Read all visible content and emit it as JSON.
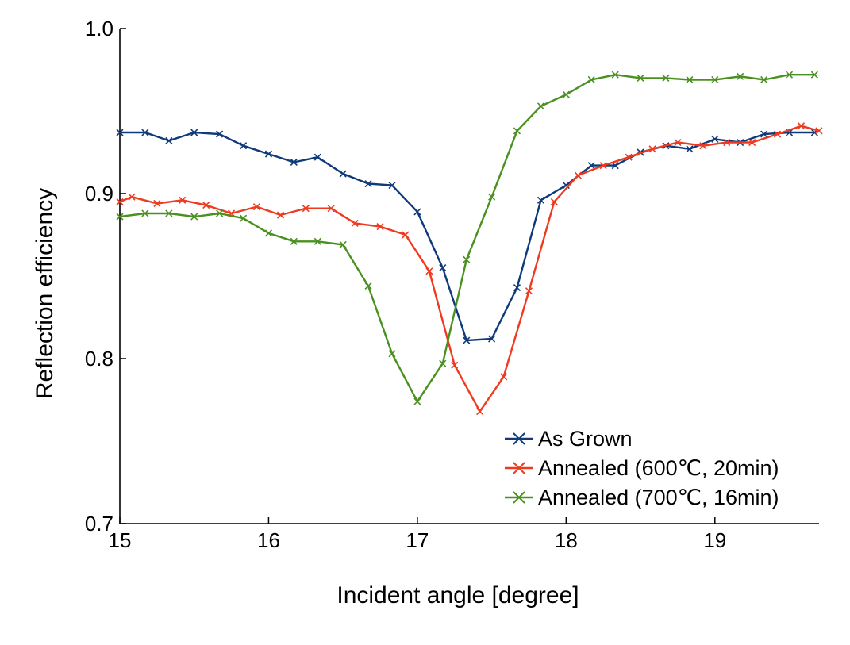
{
  "chart_data": {
    "type": "line",
    "title": "",
    "xlabel": "Incident angle [degree]",
    "ylabel": "Reflection efficiency",
    "xlim": [
      15,
      19.7
    ],
    "ylim": [
      0.7,
      1.0
    ],
    "xticks": [
      15,
      16,
      17,
      18,
      19
    ],
    "yticks": [
      0.7,
      0.8,
      0.9,
      1.0
    ],
    "xtick_labels": [
      "15",
      "16",
      "17",
      "18",
      "19"
    ],
    "ytick_labels": [
      "0.7",
      "0.8",
      "0.9",
      "1.0"
    ],
    "grid": false,
    "legend_position": "bottom-right",
    "marker": "x",
    "series": [
      {
        "name": "As Grown",
        "color": "#0f3a7a",
        "x": [
          15.0,
          15.17,
          15.33,
          15.5,
          15.67,
          15.83,
          16.0,
          16.17,
          16.33,
          16.5,
          16.67,
          16.83,
          17.0,
          17.17,
          17.33,
          17.5,
          17.67,
          17.83,
          18.0,
          18.17,
          18.33,
          18.5,
          18.67,
          18.83,
          19.0,
          19.17,
          19.33,
          19.5,
          19.67
        ],
        "y": [
          0.937,
          0.937,
          0.932,
          0.937,
          0.936,
          0.929,
          0.924,
          0.919,
          0.922,
          0.912,
          0.906,
          0.905,
          0.889,
          0.855,
          0.811,
          0.812,
          0.843,
          0.896,
          0.905,
          0.917,
          0.917,
          0.925,
          0.929,
          0.927,
          0.933,
          0.931,
          0.936,
          0.937,
          0.937
        ]
      },
      {
        "name": "Annealed (600℃, 20min)",
        "color": "#ee3a1f",
        "x": [
          15.0,
          15.08,
          15.25,
          15.42,
          15.58,
          15.75,
          15.92,
          16.08,
          16.25,
          16.42,
          16.58,
          16.75,
          16.92,
          17.08,
          17.25,
          17.42,
          17.58,
          17.75,
          17.92,
          18.08,
          18.25,
          18.42,
          18.58,
          18.75,
          18.92,
          19.08,
          19.25,
          19.42,
          19.58,
          19.7
        ],
        "y": [
          0.895,
          0.898,
          0.894,
          0.896,
          0.893,
          0.888,
          0.892,
          0.887,
          0.891,
          0.891,
          0.882,
          0.88,
          0.875,
          0.853,
          0.796,
          0.768,
          0.789,
          0.841,
          0.895,
          0.911,
          0.917,
          0.922,
          0.927,
          0.931,
          0.929,
          0.931,
          0.931,
          0.936,
          0.941,
          0.938
        ]
      },
      {
        "name": "Annealed (700℃, 16min)",
        "color": "#4a9020",
        "x": [
          15.0,
          15.17,
          15.33,
          15.5,
          15.67,
          15.83,
          16.0,
          16.17,
          16.33,
          16.5,
          16.67,
          16.83,
          17.0,
          17.17,
          17.33,
          17.5,
          17.67,
          17.83,
          18.0,
          18.17,
          18.33,
          18.5,
          18.67,
          18.83,
          19.0,
          19.17,
          19.33,
          19.5,
          19.67
        ],
        "y": [
          0.886,
          0.888,
          0.888,
          0.886,
          0.888,
          0.885,
          0.876,
          0.871,
          0.871,
          0.869,
          0.844,
          0.803,
          0.774,
          0.797,
          0.86,
          0.898,
          0.938,
          0.953,
          0.96,
          0.969,
          0.972,
          0.97,
          0.97,
          0.969,
          0.969,
          0.971,
          0.969,
          0.972,
          0.972
        ]
      }
    ]
  }
}
